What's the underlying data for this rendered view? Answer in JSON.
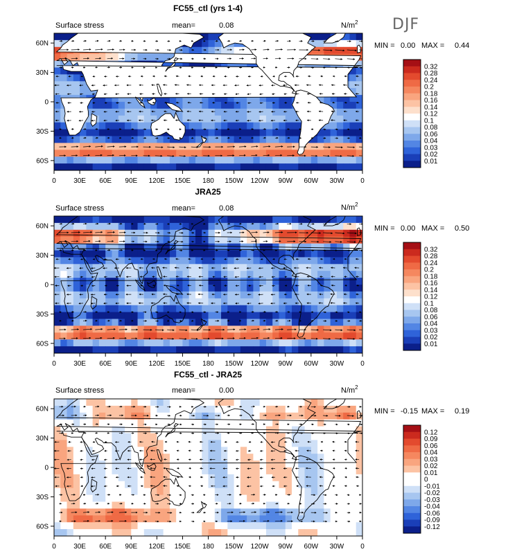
{
  "season_label": "DJF",
  "chart_data": [
    {
      "type": "heatmap",
      "title": "FC55_ctl (yrs 1-4)",
      "field_label": "Surface stress",
      "mean_label": "mean=",
      "mean_value": "0.08",
      "unit_base": "N/m",
      "unit_exp": "2",
      "min_label": "MIN =",
      "min_value": "0.00",
      "max_label": "MAX =",
      "max_value": "0.44",
      "x_ticks": [
        "0",
        "30E",
        "60E",
        "90E",
        "120E",
        "150E",
        "180",
        "150W",
        "120W",
        "90W",
        "60W",
        "30W",
        "0"
      ],
      "y_ticks": [
        "60N",
        "30N",
        "0",
        "30S",
        "60S"
      ],
      "xlim": [
        0,
        360
      ],
      "ylim": [
        -70,
        70
      ],
      "colorbar_levels": [
        "0.32",
        "0.28",
        "0.24",
        "0.2",
        "0.18",
        "0.16",
        "0.14",
        "0.12",
        "0.1",
        "0.08",
        "0.06",
        "0.04",
        "0.03",
        "0.02",
        "0.01"
      ],
      "colorbar_colors": [
        "#a50f15",
        "#cb2a1e",
        "#e34a2e",
        "#ef6a45",
        "#f5875f",
        "#f9a57f",
        "#fcc3a4",
        "#fde0cc",
        "#ffffff",
        "#cfe0f7",
        "#a7c6f0",
        "#7ea8ea",
        "#5386e4",
        "#2f63d9",
        "#1a3fb8",
        "#0b1f8a"
      ]
    },
    {
      "type": "heatmap",
      "title": "JRA25",
      "field_label": "Surface stress",
      "mean_label": "mean=",
      "mean_value": "0.08",
      "unit_base": "N/m",
      "unit_exp": "2",
      "min_label": "MIN =",
      "min_value": "0.00",
      "max_label": "MAX =",
      "max_value": "0.50",
      "x_ticks": [
        "0",
        "30E",
        "60E",
        "90E",
        "120E",
        "150E",
        "180",
        "150W",
        "120W",
        "90W",
        "60W",
        "30W",
        "0"
      ],
      "y_ticks": [
        "60N",
        "30N",
        "0",
        "30S",
        "60S"
      ],
      "xlim": [
        0,
        360
      ],
      "ylim": [
        -70,
        70
      ],
      "colorbar_levels": [
        "0.32",
        "0.28",
        "0.24",
        "0.2",
        "0.18",
        "0.16",
        "0.14",
        "0.12",
        "0.1",
        "0.08",
        "0.06",
        "0.04",
        "0.03",
        "0.02",
        "0.01"
      ],
      "colorbar_colors": [
        "#a50f15",
        "#cb2a1e",
        "#e34a2e",
        "#ef6a45",
        "#f5875f",
        "#f9a57f",
        "#fcc3a4",
        "#fde0cc",
        "#ffffff",
        "#cfe0f7",
        "#a7c6f0",
        "#7ea8ea",
        "#5386e4",
        "#2f63d9",
        "#1a3fb8",
        "#0b1f8a"
      ]
    },
    {
      "type": "heatmap",
      "title": "FC55_ctl - JRA25",
      "field_label": "Surface stress",
      "mean_label": "mean=",
      "mean_value": "0.00",
      "unit_base": "N/m",
      "unit_exp": "2",
      "min_label": "MIN =",
      "min_value": "-0.15",
      "max_label": "MAX =",
      "max_value": "0.19",
      "x_ticks": [
        "0",
        "30E",
        "60E",
        "90E",
        "120E",
        "150E",
        "180",
        "150W",
        "120W",
        "90W",
        "60W",
        "30W",
        "0"
      ],
      "y_ticks": [
        "60N",
        "30N",
        "0",
        "30S",
        "60S"
      ],
      "xlim": [
        0,
        360
      ],
      "ylim": [
        -70,
        70
      ],
      "colorbar_levels": [
        "0.12",
        "0.09",
        "0.06",
        "0.04",
        "0.03",
        "0.02",
        "0.01",
        "0",
        "-0.01",
        "-0.02",
        "-0.03",
        "-0.04",
        "-0.06",
        "-0.09",
        "-0.12"
      ],
      "colorbar_colors": [
        "#a50f15",
        "#cb2a1e",
        "#e34a2e",
        "#ef6a45",
        "#f5875f",
        "#f9a57f",
        "#fcc3a4",
        "#ffffff",
        "#ffffff",
        "#cfe0f7",
        "#a7c6f0",
        "#7ea8ea",
        "#5386e4",
        "#2f63d9",
        "#1a3fb8",
        "#0b1f8a"
      ]
    }
  ]
}
